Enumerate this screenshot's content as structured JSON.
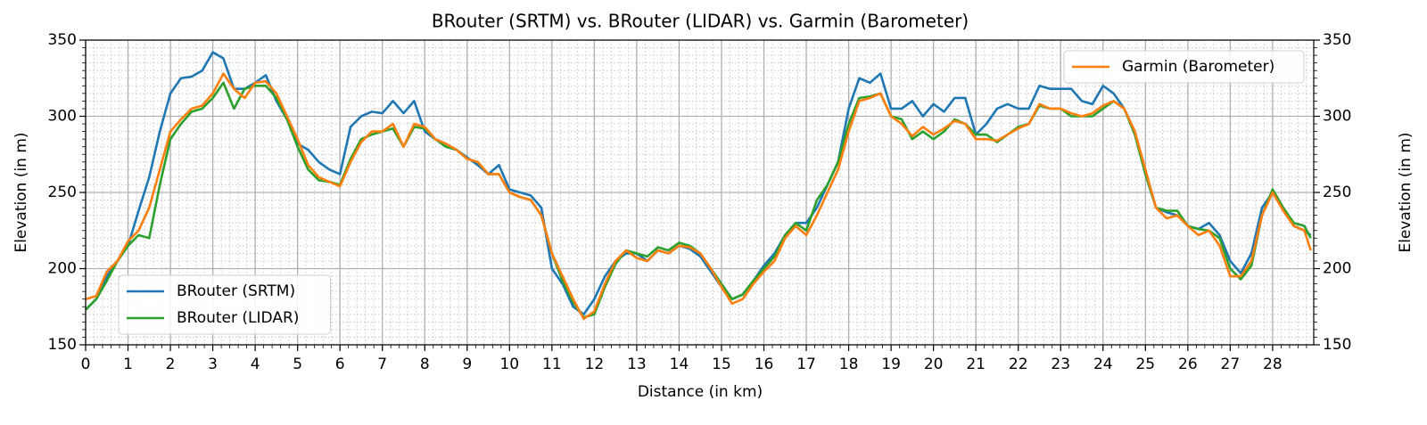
{
  "chart_data": {
    "type": "line",
    "title": "BRouter (SRTM) vs. BRouter (LIDAR) vs. Garmin (Barometer)",
    "xlabel": "Distance (in km)",
    "ylabel": "Elevation (in m)",
    "y2label": "Elevation (in m)",
    "xlim": [
      0,
      28.97
    ],
    "ylim": [
      150,
      350
    ],
    "y2lim": [
      150,
      350
    ],
    "xticks": [
      0,
      1,
      2,
      3,
      4,
      5,
      6,
      7,
      8,
      9,
      10,
      11,
      12,
      13,
      14,
      15,
      16,
      17,
      18,
      19,
      20,
      21,
      22,
      23,
      24,
      25,
      26,
      27,
      28
    ],
    "yticks": [
      150,
      200,
      250,
      300,
      350
    ],
    "y2ticks": [
      150,
      200,
      250,
      300,
      350
    ],
    "grid": true,
    "minor_grid": true,
    "xminor_step": 0.2,
    "yminor_step": 5,
    "legend_loc": "lower left",
    "legend2_loc": "upper right",
    "x": [
      0,
      0.25,
      0.5,
      0.75,
      1,
      1.25,
      1.5,
      1.75,
      2,
      2.25,
      2.5,
      2.75,
      3,
      3.25,
      3.5,
      3.75,
      4,
      4.25,
      4.5,
      4.75,
      5,
      5.25,
      5.5,
      5.75,
      6,
      6.25,
      6.5,
      6.75,
      7,
      7.25,
      7.5,
      7.75,
      8,
      8.25,
      8.5,
      8.75,
      9,
      9.25,
      9.5,
      9.75,
      10,
      10.25,
      10.5,
      10.75,
      11,
      11.25,
      11.5,
      11.75,
      12,
      12.25,
      12.5,
      12.75,
      13,
      13.25,
      13.5,
      13.75,
      14,
      14.25,
      14.5,
      14.75,
      15,
      15.25,
      15.5,
      15.75,
      16,
      16.25,
      16.5,
      16.75,
      17,
      17.25,
      17.5,
      17.75,
      18,
      18.25,
      18.5,
      18.75,
      19,
      19.25,
      19.5,
      19.75,
      20,
      20.25,
      20.5,
      20.75,
      21,
      21.25,
      21.5,
      21.75,
      22,
      22.25,
      22.5,
      22.75,
      23,
      23.25,
      23.5,
      23.75,
      24,
      24.25,
      24.5,
      24.75,
      25,
      25.25,
      25.5,
      25.75,
      26,
      26.25,
      26.5,
      26.75,
      27,
      27.25,
      27.5,
      27.75,
      28,
      28.25,
      28.5,
      28.75,
      28.9
    ],
    "series": [
      {
        "name": "BRouter (SRTM)",
        "color": "#1f77b4",
        "values": [
          173,
          180,
          195,
          205,
          215,
          238,
          260,
          290,
          315,
          325,
          326,
          330,
          342,
          338,
          318,
          318,
          322,
          327,
          310,
          298,
          282,
          278,
          270,
          265,
          262,
          293,
          300,
          303,
          302,
          310,
          302,
          310,
          290,
          285,
          280,
          278,
          273,
          268,
          262,
          268,
          252,
          250,
          248,
          240,
          200,
          190,
          175,
          170,
          180,
          195,
          205,
          210,
          210,
          205,
          212,
          210,
          215,
          213,
          208,
          198,
          188,
          180,
          183,
          192,
          202,
          210,
          222,
          230,
          230,
          240,
          255,
          270,
          305,
          325,
          322,
          328,
          305,
          305,
          310,
          300,
          308,
          303,
          312,
          312,
          288,
          295,
          305,
          308,
          305,
          305,
          320,
          318,
          318,
          318,
          310,
          308,
          320,
          315,
          305,
          290,
          262,
          240,
          237,
          235,
          228,
          226,
          230,
          222,
          205,
          197,
          210,
          240,
          250,
          240,
          228,
          225,
          222
        ]
      },
      {
        "name": "BRouter (LIDAR)",
        "color": "#2ca02c",
        "values": [
          173,
          180,
          192,
          205,
          215,
          222,
          220,
          255,
          285,
          295,
          303,
          305,
          312,
          322,
          305,
          318,
          320,
          320,
          312,
          298,
          280,
          265,
          258,
          257,
          255,
          272,
          285,
          288,
          290,
          292,
          280,
          293,
          292,
          285,
          280,
          278,
          272,
          270,
          262,
          262,
          250,
          247,
          245,
          235,
          210,
          192,
          178,
          168,
          170,
          188,
          203,
          212,
          210,
          208,
          214,
          212,
          217,
          215,
          210,
          200,
          190,
          180,
          183,
          192,
          200,
          208,
          222,
          230,
          225,
          245,
          255,
          270,
          295,
          312,
          313,
          315,
          300,
          298,
          285,
          290,
          285,
          290,
          298,
          295,
          288,
          288,
          283,
          288,
          293,
          295,
          307,
          305,
          305,
          300,
          300,
          300,
          305,
          310,
          305,
          288,
          262,
          240,
          238,
          238,
          228,
          226,
          225,
          220,
          200,
          193,
          202,
          235,
          252,
          240,
          230,
          228,
          220
        ]
      },
      {
        "name": "Garmin (Barometer)",
        "color": "#ff7f0e",
        "axis": "y2",
        "values": [
          180,
          182,
          198,
          205,
          218,
          225,
          240,
          265,
          290,
          298,
          305,
          307,
          315,
          328,
          318,
          312,
          322,
          323,
          315,
          300,
          285,
          268,
          260,
          257,
          254,
          270,
          283,
          290,
          290,
          295,
          280,
          295,
          293,
          285,
          282,
          278,
          272,
          270,
          262,
          262,
          250,
          247,
          245,
          235,
          210,
          195,
          180,
          167,
          172,
          190,
          205,
          212,
          207,
          205,
          212,
          210,
          215,
          214,
          210,
          200,
          188,
          177,
          180,
          190,
          198,
          205,
          220,
          228,
          222,
          235,
          250,
          265,
          290,
          310,
          312,
          315,
          300,
          295,
          287,
          293,
          288,
          292,
          297,
          295,
          285,
          285,
          284,
          288,
          292,
          295,
          308,
          305,
          305,
          302,
          300,
          302,
          307,
          310,
          305,
          290,
          265,
          240,
          233,
          235,
          228,
          222,
          225,
          215,
          195,
          195,
          205,
          235,
          250,
          238,
          228,
          225,
          212
        ]
      }
    ]
  }
}
